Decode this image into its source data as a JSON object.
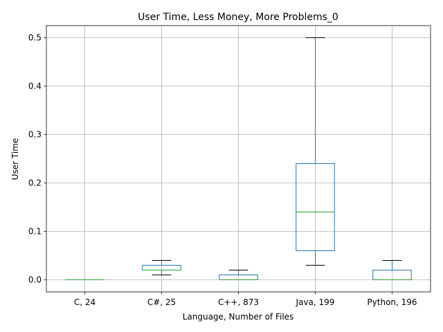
{
  "chart_data": {
    "type": "boxplot",
    "title": "User Time, Less Money, More Problems_0",
    "xlabel": "Language, Number of Files",
    "ylabel": "User Time",
    "categories": [
      "C, 24",
      "C#, 25",
      "C++, 873",
      "Java, 199",
      "Python, 196"
    ],
    "ylim": [
      -0.025,
      0.525
    ],
    "yticks": [
      0.0,
      0.1,
      0.2,
      0.3,
      0.4,
      0.5
    ],
    "ytick_labels": [
      "0.0",
      "0.1",
      "0.2",
      "0.3",
      "0.4",
      "0.5"
    ],
    "grid": true,
    "boxes": [
      {
        "whisker_low": 0.0,
        "q1": 0.0,
        "median": 0.0,
        "q3": 0.0,
        "whisker_high": 0.0
      },
      {
        "whisker_low": 0.01,
        "q1": 0.02,
        "median": 0.02,
        "q3": 0.03,
        "whisker_high": 0.04
      },
      {
        "whisker_low": 0.0,
        "q1": 0.0,
        "median": 0.0,
        "q3": 0.01,
        "whisker_high": 0.02
      },
      {
        "whisker_low": 0.03,
        "q1": 0.06,
        "median": 0.14,
        "q3": 0.24,
        "whisker_high": 0.5
      },
      {
        "whisker_low": 0.0,
        "q1": 0.0,
        "median": 0.0,
        "q3": 0.02,
        "whisker_high": 0.04
      }
    ],
    "colors": {
      "box": "#1f77b4",
      "median": "#2ca02c",
      "whisker_cap": "#000000",
      "grid": "#b0b0b0"
    }
  }
}
